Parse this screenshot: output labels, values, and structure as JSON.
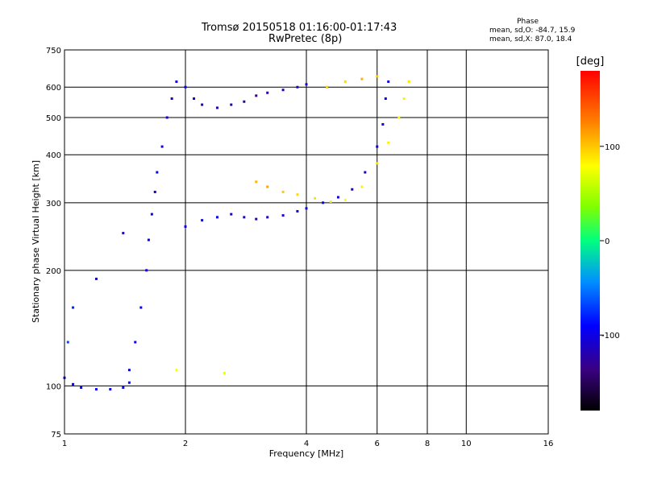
{
  "title": "Tromsø 20150518 01:16:00-01:17:43",
  "subtitle": "RwPretec (8p)",
  "phase_box": {
    "heading": "Phase",
    "line1": "mean, sd,O: -84.7, 15.9",
    "line2": "mean, sd,X:  87.0, 18.4"
  },
  "colorbar": {
    "label": "[deg]",
    "ticks": [
      {
        "value": 100,
        "label": "100"
      },
      {
        "value": 0,
        "label": "0"
      },
      {
        "value": -100,
        "label": "-100"
      }
    ],
    "range": [
      -180,
      180
    ]
  },
  "chart_data": {
    "type": "scatter",
    "xlabel": "Frequency [MHz]",
    "ylabel": "Stationary phase Virtual Height [km]",
    "x_scale": "log",
    "y_scale": "log",
    "xlim": [
      1,
      16
    ],
    "ylim": [
      75,
      750
    ],
    "xticks": [
      {
        "value": 1,
        "label": "1"
      },
      {
        "value": 2,
        "label": "2"
      },
      {
        "value": 4,
        "label": "4"
      },
      {
        "value": 6,
        "label": "6"
      },
      {
        "value": 8,
        "label": "8"
      },
      {
        "value": 10,
        "label": "10"
      },
      {
        "value": 16,
        "label": "16"
      }
    ],
    "yticks": [
      {
        "value": 75,
        "label": "75"
      },
      {
        "value": 100,
        "label": "100"
      },
      {
        "value": 200,
        "label": "200"
      },
      {
        "value": 300,
        "label": "300"
      },
      {
        "value": 400,
        "label": "400"
      },
      {
        "value": 500,
        "label": "500"
      },
      {
        "value": 600,
        "label": "600"
      },
      {
        "value": 750,
        "label": "750"
      }
    ],
    "grid": true,
    "series": [
      {
        "mode": "O",
        "points": [
          [
            1.0,
            105,
            -110
          ],
          [
            1.05,
            101,
            -105
          ],
          [
            1.1,
            99,
            -100
          ],
          [
            1.2,
            98,
            -105
          ],
          [
            1.3,
            98,
            -100
          ],
          [
            1.4,
            99,
            -100
          ],
          [
            1.45,
            102,
            -95
          ],
          [
            1.02,
            130,
            -80
          ],
          [
            1.05,
            160,
            -90
          ],
          [
            1.2,
            190,
            -110
          ],
          [
            1.4,
            250,
            -120
          ],
          [
            1.45,
            110,
            -100
          ],
          [
            1.5,
            130,
            -110
          ],
          [
            1.55,
            160,
            -105
          ],
          [
            1.6,
            200,
            -110
          ],
          [
            1.62,
            240,
            -100
          ],
          [
            1.65,
            280,
            -105
          ],
          [
            1.68,
            320,
            -110
          ],
          [
            1.7,
            360,
            -105
          ],
          [
            1.75,
            420,
            -110
          ],
          [
            1.8,
            500,
            -115
          ],
          [
            1.85,
            560,
            -120
          ],
          [
            1.9,
            620,
            -110
          ],
          [
            2.0,
            600,
            -100
          ],
          [
            2.1,
            560,
            -110
          ],
          [
            2.2,
            540,
            -120
          ],
          [
            2.4,
            530,
            -125
          ],
          [
            2.6,
            540,
            -120
          ],
          [
            2.8,
            550,
            -130
          ],
          [
            3.0,
            570,
            -140
          ],
          [
            3.2,
            580,
            -130
          ],
          [
            3.5,
            590,
            -120
          ],
          [
            3.8,
            600,
            -115
          ],
          [
            4.0,
            610,
            -110
          ],
          [
            2.0,
            260,
            -110
          ],
          [
            2.2,
            270,
            -100
          ],
          [
            2.4,
            275,
            -105
          ],
          [
            2.6,
            280,
            -110
          ],
          [
            2.8,
            275,
            -120
          ],
          [
            3.0,
            272,
            -130
          ],
          [
            3.2,
            275,
            -125
          ],
          [
            3.5,
            278,
            -115
          ],
          [
            3.8,
            285,
            -110
          ],
          [
            4.0,
            290,
            -105
          ],
          [
            4.4,
            300,
            -100
          ],
          [
            4.8,
            310,
            -110
          ],
          [
            5.2,
            325,
            -120
          ],
          [
            5.6,
            360,
            -115
          ],
          [
            6.0,
            420,
            -110
          ],
          [
            6.2,
            480,
            -105
          ],
          [
            6.3,
            560,
            -100
          ],
          [
            6.4,
            620,
            -110
          ]
        ]
      },
      {
        "mode": "X",
        "points": [
          [
            3.0,
            340,
            110
          ],
          [
            3.2,
            330,
            115
          ],
          [
            3.5,
            320,
            100
          ],
          [
            3.8,
            315,
            95
          ],
          [
            4.2,
            308,
            90
          ],
          [
            4.6,
            302,
            85
          ],
          [
            5.0,
            305,
            80
          ],
          [
            5.5,
            330,
            85
          ],
          [
            6.0,
            380,
            90
          ],
          [
            6.4,
            430,
            85
          ],
          [
            6.8,
            500,
            80
          ],
          [
            7.0,
            560,
            85
          ],
          [
            7.2,
            620,
            90
          ],
          [
            4.5,
            600,
            100
          ],
          [
            5.0,
            620,
            95
          ],
          [
            5.5,
            630,
            110
          ],
          [
            6.0,
            640,
            100
          ],
          [
            1.9,
            110,
            80
          ],
          [
            2.5,
            108,
            75
          ]
        ]
      }
    ]
  }
}
